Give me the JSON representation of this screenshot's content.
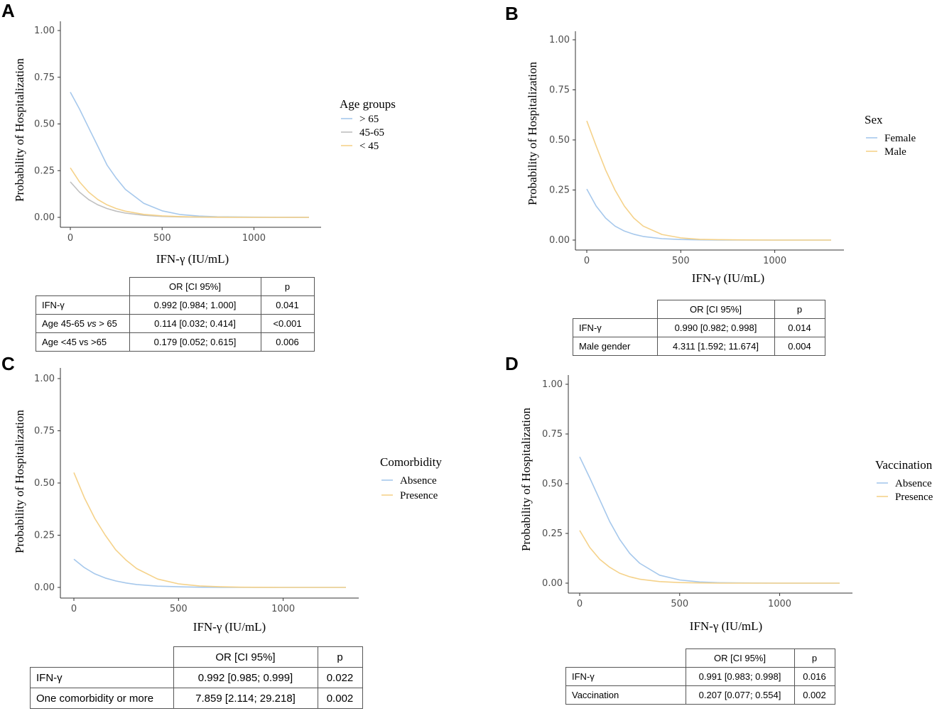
{
  "panels": [
    {
      "label": "A",
      "legend_title": "Age groups",
      "ylabel": "Probability of Hospitalization",
      "xlabel": "IFN-γ (IU/mL)",
      "table": {
        "headers": [
          "OR [CI 95%]",
          "p"
        ],
        "rows": [
          {
            "label": "IFN-γ",
            "or": "0.992 [0.984; 1.000]",
            "p": "0.041"
          },
          {
            "label": "Age 45-65 vs > 65",
            "or": "0.114 [0.032; 0.414]",
            "p": "<0.001"
          },
          {
            "label": "Age <45 vs >65",
            "or": "0.179 [0.052; 0.615]",
            "p": "0.006"
          }
        ]
      }
    },
    {
      "label": "B",
      "legend_title": "Sex",
      "ylabel": "Probability of Hospitalization",
      "xlabel": "IFN-γ (IU/mL)",
      "table": {
        "headers": [
          "OR [CI 95%]",
          "p"
        ],
        "rows": [
          {
            "label": "IFN-γ",
            "or": "0.990 [0.982; 0.998]",
            "p": "0.014"
          },
          {
            "label": "Male gender",
            "or": "4.311 [1.592; 11.674]",
            "p": "0.004"
          }
        ]
      }
    },
    {
      "label": "C",
      "legend_title": "Comorbidity",
      "ylabel": "Probability of Hospitalization",
      "xlabel": "IFN-γ (IU/mL)",
      "table": {
        "headers": [
          "OR [CI 95%]",
          "p"
        ],
        "rows": [
          {
            "label": "IFN-γ",
            "or": "0.992 [0.985; 0.999]",
            "p": "0.022"
          },
          {
            "label": "One comorbidity or more",
            "or": "7.859 [2.114; 29.218]",
            "p": "0.002"
          }
        ]
      }
    },
    {
      "label": "D",
      "legend_title": "Vaccination",
      "ylabel": "Probability of Hospitalization",
      "xlabel": "IFN-γ (IU/mL)",
      "table": {
        "headers": [
          "OR [CI 95%]",
          "p"
        ],
        "rows": [
          {
            "label": "IFN-γ",
            "or": "0.991 [0.983; 0.998]",
            "p": "0.016"
          },
          {
            "label": "Vaccination",
            "or": "0.207 [0.077; 0.554]",
            "p": "0.002"
          }
        ]
      }
    }
  ],
  "chart_data": [
    {
      "type": "line",
      "title": "A",
      "xlabel": "IFN-γ (IU/mL)",
      "ylabel": "Probability of Hospitalization",
      "xlim": [
        0,
        1300
      ],
      "ylim": [
        0,
        1
      ],
      "x_ticks": [
        "0",
        "500",
        "1000"
      ],
      "y_ticks": [
        "0.00",
        "0.25",
        "0.50",
        "0.75",
        "1.00"
      ],
      "legend_title": "Age groups",
      "x": [
        0,
        50,
        100,
        150,
        200,
        250,
        300,
        400,
        500,
        600,
        700,
        800,
        1000,
        1300
      ],
      "series": [
        {
          "name": "> 65",
          "color": "#a6c8ec",
          "values": [
            0.67,
            0.58,
            0.48,
            0.38,
            0.28,
            0.21,
            0.15,
            0.075,
            0.035,
            0.015,
            0.007,
            0.003,
            0.001,
            0.0
          ]
        },
        {
          "name": "45-65",
          "color": "#c0c0c0",
          "values": [
            0.19,
            0.135,
            0.095,
            0.067,
            0.047,
            0.033,
            0.023,
            0.011,
            0.005,
            0.002,
            0.001,
            0.0,
            0.0,
            0.0
          ]
        },
        {
          "name": "< 45",
          "color": "#f5d28a",
          "values": [
            0.265,
            0.19,
            0.135,
            0.095,
            0.067,
            0.047,
            0.033,
            0.016,
            0.008,
            0.004,
            0.002,
            0.001,
            0.0,
            0.0
          ]
        }
      ]
    },
    {
      "type": "line",
      "title": "B",
      "xlabel": "IFN-γ (IU/mL)",
      "ylabel": "Probability of Hospitalization",
      "xlim": [
        0,
        1300
      ],
      "ylim": [
        0,
        1
      ],
      "x_ticks": [
        "0",
        "500",
        "1000"
      ],
      "y_ticks": [
        "0.00",
        "0.25",
        "0.50",
        "0.75",
        "1.00"
      ],
      "legend_title": "Sex",
      "x": [
        0,
        50,
        100,
        150,
        200,
        250,
        300,
        400,
        500,
        600,
        700,
        800,
        1000,
        1300
      ],
      "series": [
        {
          "name": "Female",
          "color": "#a6c8ec",
          "values": [
            0.255,
            0.17,
            0.11,
            0.07,
            0.045,
            0.029,
            0.018,
            0.007,
            0.003,
            0.001,
            0.0,
            0.0,
            0.0,
            0.0
          ]
        },
        {
          "name": "Male",
          "color": "#f5d28a",
          "values": [
            0.595,
            0.47,
            0.35,
            0.25,
            0.17,
            0.11,
            0.07,
            0.028,
            0.011,
            0.004,
            0.002,
            0.001,
            0.0,
            0.0
          ]
        }
      ]
    },
    {
      "type": "line",
      "title": "C",
      "xlabel": "IFN-γ (IU/mL)",
      "ylabel": "Probability of Hospitalization",
      "xlim": [
        0,
        1300
      ],
      "ylim": [
        0,
        1
      ],
      "x_ticks": [
        "0",
        "500",
        "1000"
      ],
      "y_ticks": [
        "0.00",
        "0.25",
        "0.50",
        "0.75",
        "1.00"
      ],
      "legend_title": "Comorbidity",
      "x": [
        0,
        50,
        100,
        150,
        200,
        250,
        300,
        400,
        500,
        600,
        700,
        800,
        1000,
        1300
      ],
      "series": [
        {
          "name": "Absence",
          "color": "#a6c8ec",
          "values": [
            0.135,
            0.095,
            0.065,
            0.045,
            0.031,
            0.021,
            0.014,
            0.006,
            0.003,
            0.001,
            0.0,
            0.0,
            0.0,
            0.0
          ]
        },
        {
          "name": "Presence",
          "color": "#f5d28a",
          "values": [
            0.55,
            0.43,
            0.33,
            0.25,
            0.18,
            0.13,
            0.09,
            0.04,
            0.017,
            0.007,
            0.003,
            0.001,
            0.0,
            0.0
          ]
        }
      ]
    },
    {
      "type": "line",
      "title": "D",
      "xlabel": "IFN-γ (IU/mL)",
      "ylabel": "Probability of Hospitalization",
      "xlim": [
        0,
        1300
      ],
      "ylim": [
        0,
        1
      ],
      "x_ticks": [
        "0",
        "500",
        "1000"
      ],
      "y_ticks": [
        "0.00",
        "0.25",
        "0.50",
        "0.75",
        "1.00"
      ],
      "legend_title": "Vaccination",
      "x": [
        0,
        50,
        100,
        150,
        200,
        250,
        300,
        400,
        500,
        600,
        700,
        800,
        1000,
        1300
      ],
      "series": [
        {
          "name": "Absence",
          "color": "#a6c8ec",
          "values": [
            0.635,
            0.53,
            0.42,
            0.31,
            0.22,
            0.15,
            0.1,
            0.04,
            0.016,
            0.006,
            0.002,
            0.001,
            0.0,
            0.0
          ]
        },
        {
          "name": "Presence",
          "color": "#f5d28a",
          "values": [
            0.265,
            0.18,
            0.12,
            0.08,
            0.05,
            0.032,
            0.02,
            0.008,
            0.003,
            0.001,
            0.0,
            0.0,
            0.0,
            0.0
          ]
        }
      ]
    }
  ]
}
